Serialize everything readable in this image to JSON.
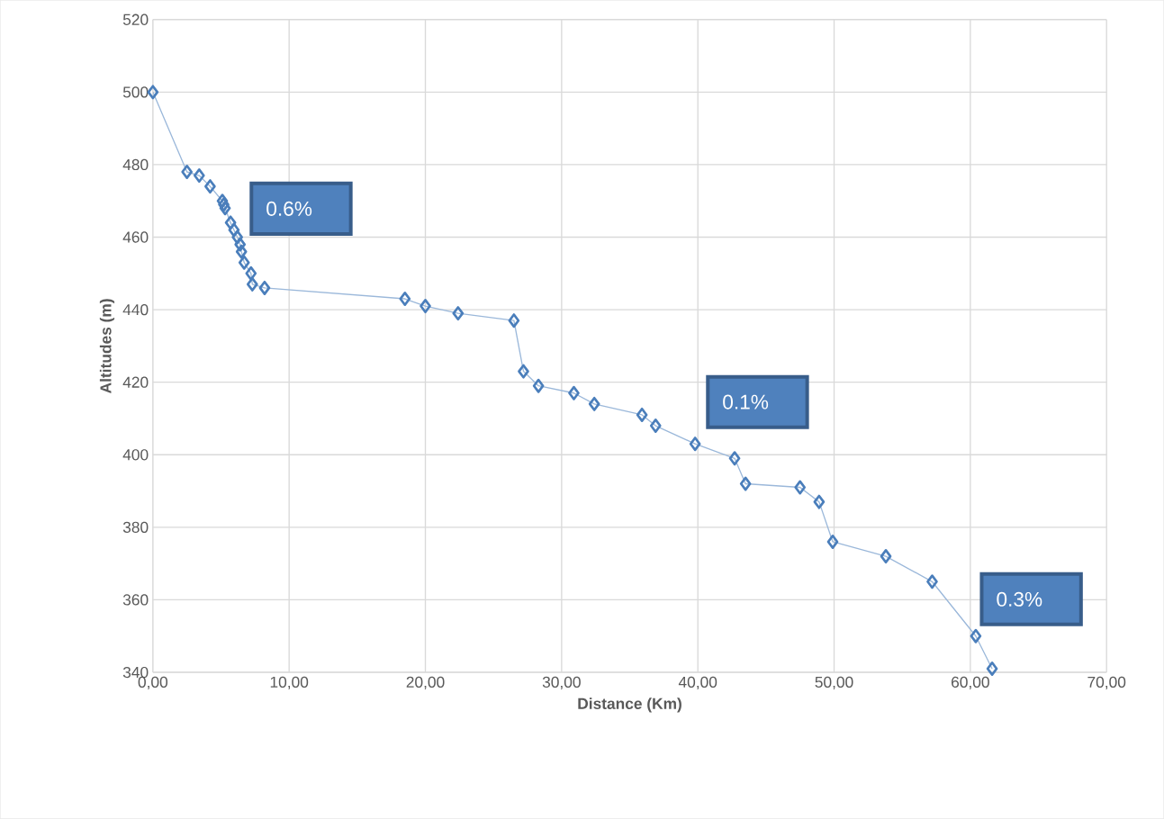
{
  "chart_data": {
    "type": "line",
    "xlabel": "Distance (Km)",
    "ylabel": "Altitudes (m)",
    "x": [
      0,
      2.5,
      3.4,
      4.2,
      5.1,
      5.2,
      5.3,
      5.7,
      5.95,
      6.2,
      6.4,
      6.5,
      6.7,
      7.2,
      7.3,
      8.2,
      18.5,
      20.0,
      22.4,
      26.5,
      27.2,
      28.3,
      30.9,
      32.4,
      35.9,
      36.9,
      39.8,
      42.7,
      43.5,
      47.5,
      48.9,
      49.9,
      53.8,
      57.2,
      60.4,
      61.6
    ],
    "series": [
      {
        "color": "#4a7ebb",
        "values": [
          500,
          478,
          477,
          474,
          470,
          469,
          468,
          464,
          462,
          460,
          458,
          456,
          453,
          450,
          447,
          446,
          443,
          441,
          439,
          437,
          423,
          419,
          417,
          414,
          411,
          408,
          403,
          399,
          392,
          391,
          387,
          376,
          372,
          365,
          350,
          341
        ]
      }
    ],
    "xlim": [
      0,
      70
    ],
    "ylim": [
      340,
      520
    ],
    "xticks": [
      {
        "value": 0,
        "label": "0,00"
      },
      {
        "value": 10,
        "label": "10,00"
      },
      {
        "value": 20,
        "label": "20,00"
      },
      {
        "value": 30,
        "label": "30,00"
      },
      {
        "value": 40,
        "label": "40,00"
      },
      {
        "value": 50,
        "label": "50,00"
      },
      {
        "value": 60,
        "label": "60,00"
      },
      {
        "value": 70,
        "label": "70,00"
      }
    ],
    "yticks": [
      340,
      360,
      380,
      400,
      420,
      440,
      460,
      480,
      500,
      520
    ],
    "annotations": [
      "0.6%",
      "0.1%",
      "0.3%"
    ],
    "grid": true,
    "marker": "diamond",
    "line_style": "solid"
  }
}
